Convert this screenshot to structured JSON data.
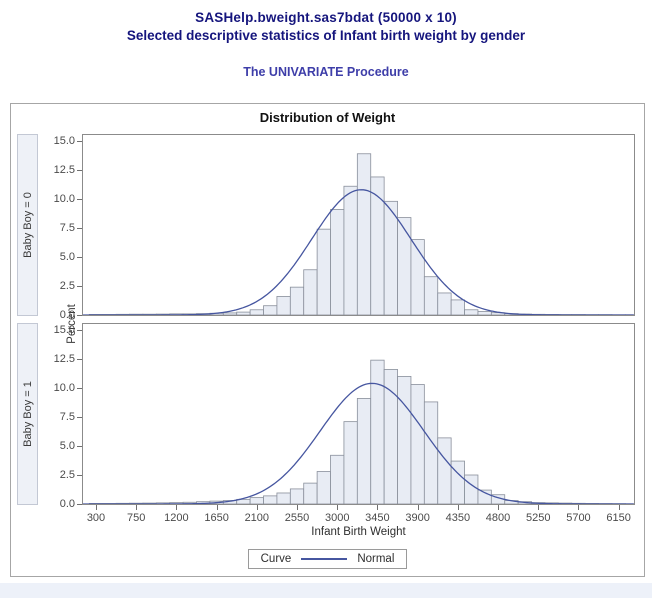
{
  "header": {
    "title_line1": "SASHelp.bweight.sas7bdat (50000 x 10)",
    "title_line2": "Selected descriptive statistics of Infant birth weight by gender",
    "procedure_title": "The UNIVARIATE Procedure"
  },
  "chart_data": {
    "type": "bar",
    "subtype": "paneled-histogram-with-normal-curve",
    "title": "Distribution of Weight",
    "xlabel": "Infant Birth Weight",
    "ylabel": "Percent",
    "x_ticks": [
      300,
      750,
      1200,
      1650,
      2100,
      2550,
      3000,
      3450,
      3900,
      4350,
      4800,
      5250,
      5700,
      6150
    ],
    "y_ticks": [
      "0.0",
      "2.5",
      "5.0",
      "7.5",
      "10.0",
      "12.5",
      "15.0"
    ],
    "ylim": [
      0,
      15.6
    ],
    "xlim": [
      143,
      6340
    ],
    "grid": false,
    "bin_width": 150,
    "bin_midpoints": [
      300,
      450,
      600,
      750,
      900,
      1050,
      1200,
      1350,
      1500,
      1650,
      1800,
      1950,
      2100,
      2250,
      2400,
      2550,
      2700,
      2850,
      3000,
      3150,
      3300,
      3450,
      3600,
      3750,
      3900,
      4050,
      4200,
      4350,
      4500,
      4650,
      4800,
      4950,
      5100,
      5250,
      5400,
      5550,
      5700,
      5850,
      6000,
      6150,
      6300
    ],
    "panels": [
      {
        "label": "Baby Boy = 0",
        "percents": [
          0.05,
          0.05,
          0.06,
          0.07,
          0.07,
          0.08,
          0.1,
          0.1,
          0.12,
          0.15,
          0.18,
          0.25,
          0.45,
          0.8,
          1.6,
          2.4,
          3.9,
          7.4,
          9.1,
          11.1,
          13.9,
          11.9,
          9.8,
          8.4,
          6.5,
          3.3,
          1.9,
          1.3,
          0.45,
          0.3,
          0.2,
          0.12,
          0.08,
          0.06,
          0.05,
          0.04,
          0.04,
          0.03,
          0.03,
          0.02,
          0.02
        ],
        "normal_curve": {
          "mean": 3270,
          "sd": 555,
          "peak_percent": 10.8
        }
      },
      {
        "label": "Baby Boy = 1",
        "percents": [
          0.05,
          0.05,
          0.06,
          0.07,
          0.08,
          0.1,
          0.12,
          0.15,
          0.2,
          0.25,
          0.3,
          0.4,
          0.55,
          0.7,
          0.95,
          1.3,
          1.8,
          2.8,
          4.2,
          7.1,
          9.1,
          12.4,
          11.6,
          11.0,
          10.3,
          8.8,
          5.7,
          3.7,
          2.5,
          1.2,
          0.8,
          0.3,
          0.2,
          0.12,
          0.1,
          0.08,
          0.06,
          0.05,
          0.04,
          0.03,
          0.02
        ],
        "normal_curve": {
          "mean": 3390,
          "sd": 580,
          "peak_percent": 10.4
        }
      }
    ],
    "legend": {
      "label": "Curve",
      "entries": [
        {
          "name": "Normal",
          "color": "#4656a0"
        }
      ],
      "position": "bottom-center"
    }
  },
  "colors": {
    "header_title": "#15157d",
    "procedure_title": "#3e3ea9",
    "chart_border": "#a6a6a6",
    "panel_border": "#8b8b8b",
    "row_strip_bg": "#eef1f7",
    "row_strip_border": "#c3c8d4",
    "bar_fill": "#e8ecf4",
    "bar_stroke": "#898f9b",
    "curve": "#4656a0",
    "tick_text": "#4a4a4a",
    "footer_bg": "#edf1f9"
  }
}
